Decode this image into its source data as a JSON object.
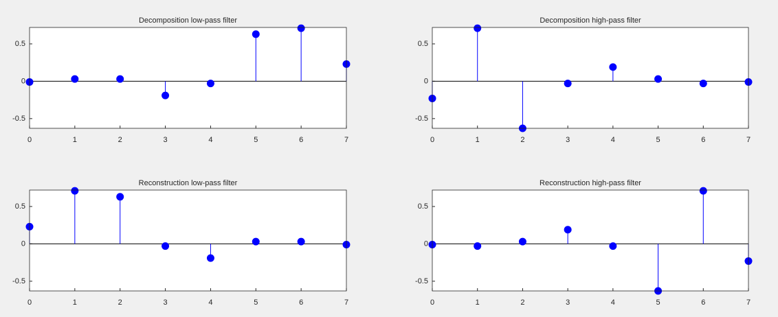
{
  "chart_data": [
    {
      "type": "stem",
      "title": "Decomposition low-pass filter",
      "x": [
        0,
        1,
        2,
        3,
        4,
        5,
        6,
        7
      ],
      "values": [
        -0.01,
        0.03,
        0.03,
        -0.19,
        -0.03,
        0.63,
        0.71,
        0.23
      ],
      "color": "#0000ff",
      "xlim": [
        0,
        7
      ],
      "ylim": [
        -0.63,
        0.72
      ],
      "xticks": [
        0,
        1,
        2,
        3,
        4,
        5,
        6,
        7
      ],
      "yticks": [
        -0.5,
        0,
        0.5
      ]
    },
    {
      "type": "stem",
      "title": "Decomposition high-pass filter",
      "x": [
        0,
        1,
        2,
        3,
        4,
        5,
        6,
        7
      ],
      "values": [
        -0.23,
        0.71,
        -0.63,
        -0.03,
        0.19,
        0.03,
        -0.03,
        -0.01
      ],
      "color": "#0000ff",
      "xlim": [
        0,
        7
      ],
      "ylim": [
        -0.63,
        0.72
      ],
      "xticks": [
        0,
        1,
        2,
        3,
        4,
        5,
        6,
        7
      ],
      "yticks": [
        -0.5,
        0,
        0.5
      ]
    },
    {
      "type": "stem",
      "title": "Reconstruction low-pass filter",
      "x": [
        0,
        1,
        2,
        3,
        4,
        5,
        6,
        7
      ],
      "values": [
        0.23,
        0.71,
        0.63,
        -0.03,
        -0.19,
        0.03,
        0.03,
        -0.01
      ],
      "color": "#0000ff",
      "xlim": [
        0,
        7
      ],
      "ylim": [
        -0.63,
        0.72
      ],
      "xticks": [
        0,
        1,
        2,
        3,
        4,
        5,
        6,
        7
      ],
      "yticks": [
        -0.5,
        0,
        0.5
      ]
    },
    {
      "type": "stem",
      "title": "Reconstruction high-pass filter",
      "x": [
        0,
        1,
        2,
        3,
        4,
        5,
        6,
        7
      ],
      "values": [
        -0.01,
        -0.03,
        0.03,
        0.19,
        -0.03,
        -0.63,
        0.71,
        -0.23
      ],
      "color": "#0000ff",
      "xlim": [
        0,
        7
      ],
      "ylim": [
        -0.63,
        0.72
      ],
      "xticks": [
        0,
        1,
        2,
        3,
        4,
        5,
        6,
        7
      ],
      "yticks": [
        -0.5,
        0,
        0.5
      ]
    }
  ]
}
